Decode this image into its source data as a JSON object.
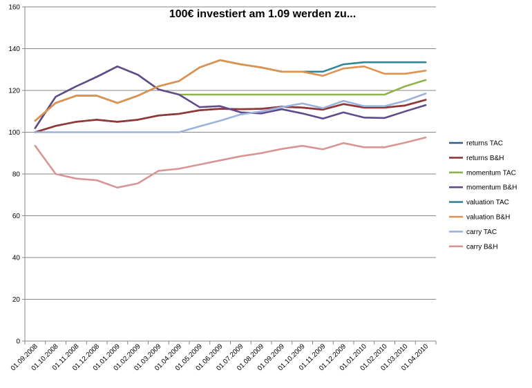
{
  "chart_data": {
    "type": "line",
    "title": "100€ investiert am 1.09 werden zu...",
    "xlabel": "",
    "ylabel": "",
    "ylim": [
      0,
      160
    ],
    "yticks": [
      0,
      20,
      40,
      60,
      80,
      100,
      120,
      140,
      160
    ],
    "grid": true,
    "legend_position": "right",
    "categories": [
      "01.09.2008",
      "01.10.2008",
      "01.11.2008",
      "01.12.2008",
      "01.01.2009",
      "01.02.2009",
      "01.03.2009",
      "01.04.2009",
      "01.05.2009",
      "01.06.2009",
      "01.07.2009",
      "01.08.2009",
      "01.09.2009",
      "01.10.2009",
      "01.11.2009",
      "01.12.2009",
      "01.01.2010",
      "01.02.2010",
      "01.03.2010",
      "01.04.2010"
    ],
    "series": [
      {
        "name": "returns TAC",
        "color": "#2E5C8A",
        "values": [
          100,
          103,
          105,
          106,
          105,
          106,
          108,
          108.8,
          110.5,
          111.2,
          111,
          111.2,
          112.2,
          111.8,
          110.8,
          113.5,
          111.8,
          111.8,
          112.8,
          115.5
        ]
      },
      {
        "name": "returns B&H",
        "color": "#943634",
        "values": [
          100,
          103,
          105,
          106,
          105,
          106,
          108,
          108.8,
          110.5,
          111.2,
          111,
          111.2,
          112.2,
          111.8,
          110.8,
          113.5,
          111.8,
          111.8,
          112.8,
          115.5
        ]
      },
      {
        "name": "momentum TAC",
        "color": "#8DB34A",
        "values": [
          102,
          117,
          122,
          126.5,
          131.5,
          127.5,
          120.5,
          118,
          118,
          118,
          118,
          118,
          118,
          118,
          118,
          118,
          118,
          118,
          122,
          125
        ]
      },
      {
        "name": "momentum B&H",
        "color": "#5F4B8B",
        "values": [
          102,
          117,
          122,
          126.5,
          131.5,
          127.5,
          120.5,
          118,
          112,
          112.5,
          109.5,
          109,
          111,
          109,
          106.5,
          109.5,
          107,
          106.8,
          110,
          113
        ]
      },
      {
        "name": "valuation TAC",
        "color": "#31849B",
        "values": [
          105.5,
          114,
          117.5,
          117.5,
          114,
          117.5,
          122,
          124.5,
          131,
          134.5,
          132.5,
          131,
          129,
          129,
          129,
          132.5,
          133.5,
          133.5,
          133.5,
          133.5
        ]
      },
      {
        "name": "valuation B&H",
        "color": "#E0914B",
        "values": [
          105.5,
          114,
          117.5,
          117.5,
          114,
          117.5,
          122,
          124.5,
          131,
          134.5,
          132.5,
          131,
          129,
          129,
          127,
          130.5,
          131.5,
          128,
          128,
          129.5
        ]
      },
      {
        "name": "carry TAC",
        "color": "#9BB3DC",
        "values": [
          100,
          100,
          100,
          100,
          100,
          100,
          100,
          100,
          102.8,
          105.5,
          108.5,
          110,
          112,
          113.8,
          111.5,
          115,
          112.5,
          112.5,
          115,
          118.5
        ]
      },
      {
        "name": "carry B&H",
        "color": "#D99594",
        "values": [
          93.5,
          80,
          77.8,
          77,
          73.5,
          75.5,
          81.5,
          82.5,
          84.5,
          86.5,
          88.5,
          90,
          92,
          93.5,
          91.8,
          94.8,
          92.8,
          92.8,
          95,
          97.5
        ]
      }
    ]
  }
}
